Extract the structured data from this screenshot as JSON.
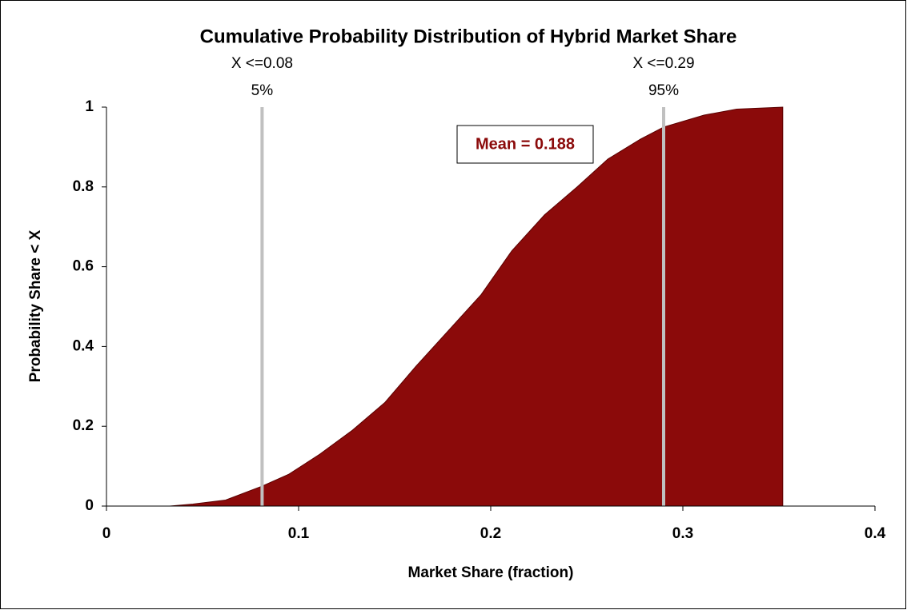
{
  "chart_data": {
    "type": "area",
    "title": "Cumulative Probability Distribution of Hybrid Market Share",
    "x_label": "Market Share (fraction)",
    "y_label": "Probability Share < X",
    "x": [
      0.033,
      0.045,
      0.062,
      0.081,
      0.095,
      0.111,
      0.128,
      0.145,
      0.161,
      0.178,
      0.195,
      0.211,
      0.228,
      0.245,
      0.261,
      0.278,
      0.29,
      0.311,
      0.328,
      0.352
    ],
    "values": [
      0,
      0.005,
      0.015,
      0.05,
      0.08,
      0.13,
      0.19,
      0.26,
      0.35,
      0.44,
      0.53,
      0.64,
      0.73,
      0.8,
      0.87,
      0.92,
      0.95,
      0.98,
      0.995,
      1.0
    ],
    "color": "#8b0a0a",
    "xlim": [
      0,
      0.4
    ],
    "xticks": [
      0,
      0.1,
      0.2,
      0.3,
      0.4
    ],
    "ylim": [
      0,
      1
    ],
    "yticks": [
      0,
      0.2,
      0.4,
      0.6,
      0.8,
      1
    ],
    "grid": false,
    "markers": [
      {
        "x": 0.081,
        "label": "X <=0.08",
        "percent": "5%"
      },
      {
        "x": 0.29,
        "label": "X <=0.29",
        "percent": "95%"
      }
    ],
    "annotation": "Mean = 0.188"
  }
}
